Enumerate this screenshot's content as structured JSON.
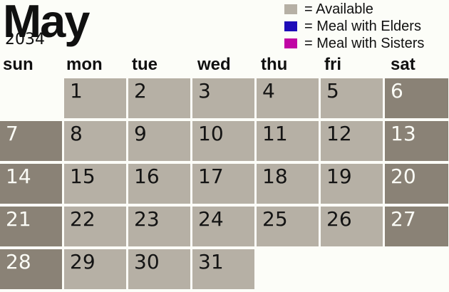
{
  "title": {
    "month": "May",
    "year": "2034"
  },
  "legend": {
    "items": [
      {
        "label": "= Available",
        "color_key": "available"
      },
      {
        "label": "= Meal with Elders",
        "color_key": "elders"
      },
      {
        "label": "= Meal with Sisters",
        "color_key": "sisters"
      }
    ]
  },
  "colors": {
    "background": "#fcfdf8",
    "available": "#b6b0a5",
    "weekend": "#8a8276",
    "elders": "#1e0cb8",
    "sisters": "#c004a4",
    "day_number_on_light": "#141414",
    "day_number_on_dark": "#fbfcf6"
  },
  "weekdays": [
    "sun",
    "mon",
    "tue",
    "wed",
    "thu",
    "fri",
    "sat"
  ],
  "weeks": [
    [
      "",
      "1",
      "2",
      "3",
      "4",
      "5",
      "6"
    ],
    [
      "7",
      "8",
      "9",
      "10",
      "11",
      "12",
      "13"
    ],
    [
      "14",
      "15",
      "16",
      "17",
      "18",
      "19",
      "20"
    ],
    [
      "21",
      "22",
      "23",
      "24",
      "25",
      "26",
      "27"
    ],
    [
      "28",
      "29",
      "30",
      "31",
      "",
      "",
      ""
    ]
  ]
}
